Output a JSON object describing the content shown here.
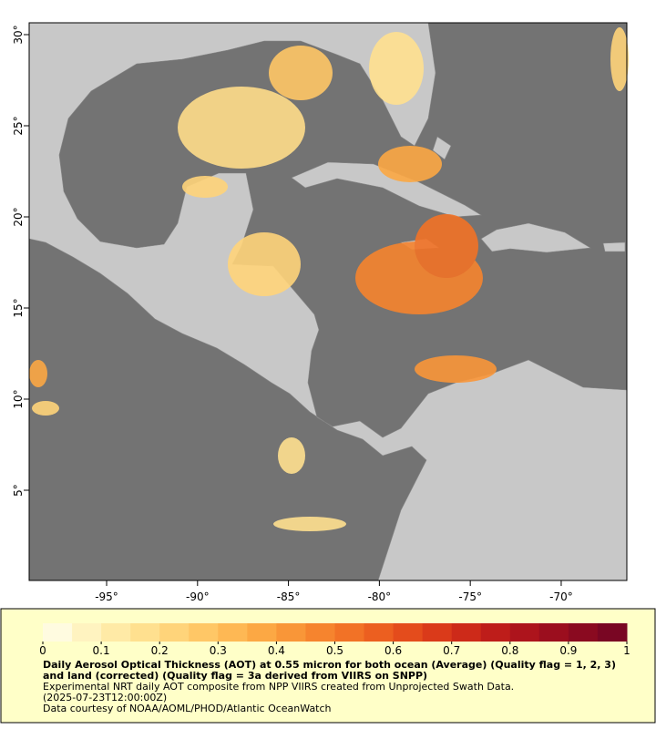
{
  "map": {
    "xlim": [
      -99.26,
      -66.39
    ],
    "ylim": [
      0.05,
      30.65
    ],
    "xticks": [
      {
        "value": -95,
        "label": "-95°"
      },
      {
        "value": -90,
        "label": "-90°"
      },
      {
        "value": -85,
        "label": "-85°"
      },
      {
        "value": -80,
        "label": "-80°"
      },
      {
        "value": -75,
        "label": "-75°"
      },
      {
        "value": -70,
        "label": "-70°"
      }
    ],
    "yticks": [
      {
        "value": 5,
        "label": "5°"
      },
      {
        "value": 10,
        "label": "10°"
      },
      {
        "value": 15,
        "label": "15°"
      },
      {
        "value": 20,
        "label": "20°"
      },
      {
        "value": 25,
        "label": "25°"
      },
      {
        "value": 30,
        "label": "30°"
      }
    ]
  },
  "colorbar": {
    "lim": [
      0,
      1
    ],
    "ticks": [
      0,
      0.1,
      0.2,
      0.3,
      0.4,
      0.5,
      0.6,
      0.7,
      0.8,
      0.9,
      1
    ],
    "colors": [
      "#fffbe0",
      "#fff3c0",
      "#ffeaa6",
      "#ffe08f",
      "#ffd47a",
      "#ffc766",
      "#feb854",
      "#fca844",
      "#f99638",
      "#f6842e",
      "#f27226",
      "#ec5f20",
      "#e44c1c",
      "#da3a1a",
      "#cd2a19",
      "#be1d1a",
      "#ad141c",
      "#9b0e1e",
      "#8a0a20",
      "#790623"
    ]
  },
  "caption": {
    "title": "Daily Aerosol Optical Thickness (AOT) at 0.55 micron for both ocean (Average) (Quality flag = 1, 2, 3) and land (corrected) (Quality flag = 3a derived from VIIRS on SNPP)",
    "lines": [
      "Experimental NRT daily AOT composite from NPP VIIRS created from Unprojected Swath Data.",
      "(2025-07-23T12:00:00Z)",
      "Data courtesy of NOAA/AOML/PHOD/Atlantic OceanWatch"
    ]
  }
}
